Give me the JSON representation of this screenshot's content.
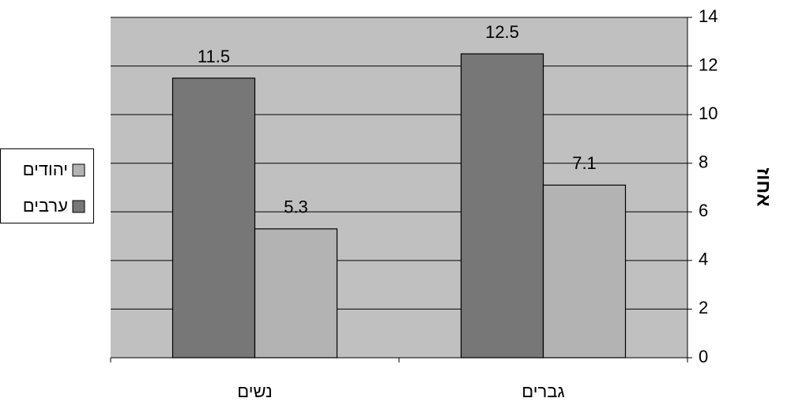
{
  "chart_data": {
    "type": "bar",
    "y_label": "אחוז",
    "categories": [
      "נשים",
      "גברים"
    ],
    "series": [
      {
        "name": "ערבים",
        "color": "#777777",
        "values": [
          11.5,
          12.5
        ]
      },
      {
        "name": "יהודים",
        "color": "#b3b3b3",
        "values": [
          5.3,
          7.1
        ]
      }
    ],
    "ylim": [
      0,
      14
    ],
    "yticks": [
      0,
      2,
      4,
      6,
      8,
      10,
      12,
      14
    ],
    "grid": true,
    "legend": "left",
    "plot_background": "#c0c0c0"
  }
}
